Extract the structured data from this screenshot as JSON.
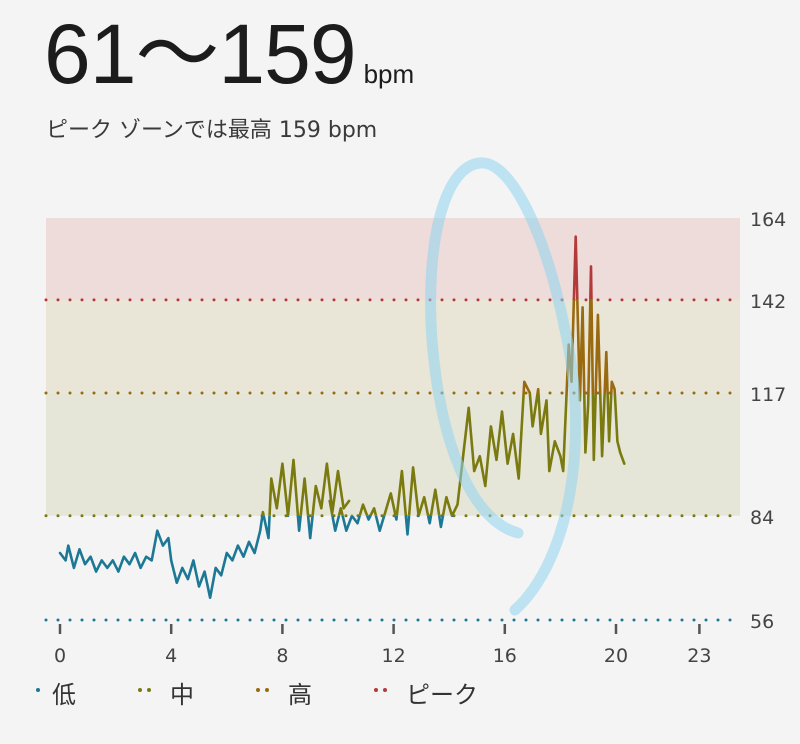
{
  "header": {
    "range": "61〜159",
    "unit": "bpm",
    "subtitle": "ピーク ゾーンでは最高 159 bpm"
  },
  "chart_data": {
    "type": "line",
    "title": "",
    "xlabel": "",
    "ylabel": "",
    "xlim": [
      -0.5,
      24.5
    ],
    "ylim": [
      56,
      164
    ],
    "x_ticks": [
      0,
      4,
      8,
      12,
      16,
      20,
      23
    ],
    "y_ticks": [
      164,
      142,
      117,
      84,
      56
    ],
    "zones": [
      {
        "name": "低",
        "from": 56,
        "to": 84,
        "color": "#1d7896"
      },
      {
        "name": "中",
        "from": 84,
        "to": 117,
        "color": "#7a7a10"
      },
      {
        "name": "高",
        "from": 117,
        "to": 142,
        "color": "#9a6a10"
      },
      {
        "name": "ピーク",
        "from": 142,
        "to": 164,
        "color": "#b43a3a"
      }
    ],
    "series": [
      {
        "segments": [
          [
            [
              0.0,
              74
            ],
            [
              0.2,
              72
            ],
            [
              0.3,
              76
            ],
            [
              0.5,
              70
            ],
            [
              0.7,
              75
            ],
            [
              0.9,
              71
            ],
            [
              1.1,
              73
            ],
            [
              1.3,
              69
            ],
            [
              1.5,
              72
            ],
            [
              1.7,
              70
            ],
            [
              1.9,
              72
            ],
            [
              2.1,
              69
            ],
            [
              2.3,
              73
            ],
            [
              2.5,
              71
            ],
            [
              2.7,
              74
            ],
            [
              2.9,
              70
            ],
            [
              3.1,
              73
            ],
            [
              3.3,
              72
            ],
            [
              3.5,
              80
            ],
            [
              3.7,
              76
            ],
            [
              3.9,
              78
            ],
            [
              4.0,
              72
            ],
            [
              4.2,
              66
            ],
            [
              4.4,
              70
            ],
            [
              4.6,
              67
            ],
            [
              4.8,
              72
            ],
            [
              5.0,
              65
            ],
            [
              5.2,
              69
            ],
            [
              5.4,
              62
            ],
            [
              5.6,
              70
            ],
            [
              5.8,
              68
            ],
            [
              6.0,
              74
            ],
            [
              6.2,
              72
            ],
            [
              6.4,
              76
            ],
            [
              6.6,
              73
            ],
            [
              6.8,
              77
            ],
            [
              7.0,
              74
            ],
            [
              7.2,
              80
            ],
            [
              7.3,
              85
            ],
            [
              7.5,
              78
            ],
            [
              7.6,
              94
            ],
            [
              7.8,
              86
            ],
            [
              8.0,
              98
            ],
            [
              8.2,
              84
            ],
            [
              8.4,
              99
            ],
            [
              8.6,
              80
            ],
            [
              8.8,
              94
            ],
            [
              9.0,
              78
            ],
            [
              9.2,
              92
            ],
            [
              9.4,
              86
            ],
            [
              9.6,
              98
            ],
            [
              9.8,
              85
            ],
            [
              10.0,
              96
            ],
            [
              10.2,
              86
            ],
            [
              10.4,
              88
            ]
          ],
          [
            [
              9.7,
              88
            ],
            [
              9.9,
              80
            ],
            [
              10.1,
              86
            ],
            [
              10.3,
              80
            ],
            [
              10.5,
              84
            ],
            [
              10.7,
              82
            ],
            [
              10.9,
              87
            ],
            [
              11.1,
              83
            ],
            [
              11.3,
              86
            ],
            [
              11.5,
              80
            ],
            [
              11.7,
              85
            ],
            [
              11.9,
              90
            ],
            [
              12.1,
              83
            ],
            [
              12.3,
              96
            ],
            [
              12.5,
              79
            ],
            [
              12.7,
              97
            ],
            [
              12.9,
              84
            ],
            [
              13.1,
              89
            ],
            [
              13.3,
              82
            ],
            [
              13.5,
              91
            ],
            [
              13.7,
              81
            ],
            [
              13.9,
              89
            ],
            [
              14.1,
              84
            ],
            [
              14.3,
              87
            ],
            [
              14.5,
              100
            ],
            [
              14.7,
              113
            ],
            [
              14.9,
              96
            ],
            [
              15.1,
              100
            ],
            [
              15.3,
              92
            ],
            [
              15.5,
              108
            ],
            [
              15.7,
              99
            ],
            [
              15.9,
              112
            ],
            [
              16.1,
              98
            ],
            [
              16.3,
              106
            ],
            [
              16.5,
              94
            ],
            [
              16.7,
              120
            ],
            [
              16.9,
              117
            ],
            [
              17.0,
              108
            ],
            [
              17.2,
              118
            ],
            [
              17.3,
              106
            ],
            [
              17.5,
              115
            ],
            [
              17.6,
              96
            ],
            [
              17.8,
              104
            ],
            [
              18.0,
              100
            ],
            [
              18.1,
              96
            ],
            [
              18.3,
              130
            ],
            [
              18.4,
              120
            ],
            [
              18.55,
              159
            ],
            [
              18.7,
              115
            ],
            [
              18.8,
              140
            ],
            [
              18.9,
              101
            ],
            [
              19.0,
              114
            ],
            [
              19.1,
              151
            ],
            [
              19.2,
              99
            ],
            [
              19.35,
              138
            ],
            [
              19.5,
              100
            ],
            [
              19.65,
              128
            ],
            [
              19.75,
              104
            ],
            [
              19.85,
              120
            ],
            [
              19.95,
              118
            ],
            [
              20.05,
              104
            ],
            [
              20.15,
              101
            ],
            [
              20.3,
              98
            ]
          ]
        ]
      }
    ]
  },
  "legend": [
    {
      "label": "低",
      "color": "#1d7896"
    },
    {
      "label": "中",
      "color": "#7a7a10"
    },
    {
      "label": "高",
      "color": "#9a6a10"
    },
    {
      "label": "ピーク",
      "color": "#b43a3a"
    }
  ]
}
